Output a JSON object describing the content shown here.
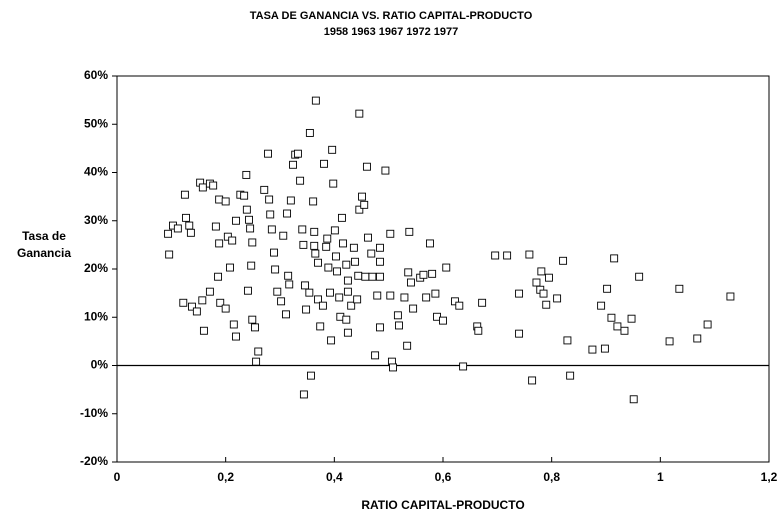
{
  "chart_data": {
    "type": "scatter",
    "title": "TASA DE GANANCIA VS. RATIO CAPITAL-PRODUCTO",
    "subtitle": "1958 1963 1967 1972 1977",
    "xlabel": "RATIO CAPITAL-PRODUCTO",
    "ylabel": [
      "Tasa de",
      "Ganancia"
    ],
    "color": "#000000",
    "marker": "square",
    "zero_line": true,
    "xlim": [
      0,
      1.2
    ],
    "ylim": [
      -20,
      60
    ],
    "xticks": [
      0,
      {
        "value": 0.2,
        "label": "0,2"
      },
      {
        "value": 0.4,
        "label": "0,4"
      },
      {
        "value": 0.6,
        "label": "0,6"
      },
      {
        "value": 0.8,
        "label": "0,8"
      },
      1,
      {
        "value": 1.2,
        "label": "1,2"
      }
    ],
    "yticks": [
      {
        "value": -20,
        "label": "-20%"
      },
      {
        "value": -10,
        "label": "-10%"
      },
      {
        "value": 0,
        "label": "0%"
      },
      {
        "value": 10,
        "label": "10%"
      },
      {
        "value": 20,
        "label": "20%"
      },
      {
        "value": 30,
        "label": "30%"
      },
      {
        "value": 40,
        "label": "40%"
      },
      {
        "value": 50,
        "label": "50%"
      },
      {
        "value": 60,
        "label": "60%"
      }
    ],
    "x": [
      0.094,
      0.096,
      0.103,
      0.112,
      0.125,
      0.122,
      0.127,
      0.133,
      0.136,
      0.138,
      0.153,
      0.158,
      0.171,
      0.177,
      0.188,
      0.182,
      0.188,
      0.186,
      0.19,
      0.2,
      0.204,
      0.212,
      0.208,
      0.215,
      0.219,
      0.219,
      0.227,
      0.234,
      0.238,
      0.239,
      0.243,
      0.245,
      0.249,
      0.247,
      0.241,
      0.249,
      0.254,
      0.26,
      0.256,
      0.271,
      0.278,
      0.28,
      0.282,
      0.285,
      0.289,
      0.291,
      0.295,
      0.302,
      0.306,
      0.313,
      0.315,
      0.317,
      0.32,
      0.324,
      0.328,
      0.333,
      0.337,
      0.341,
      0.343,
      0.346,
      0.348,
      0.354,
      0.344,
      0.357,
      0.355,
      0.366,
      0.361,
      0.363,
      0.365,
      0.37,
      0.37,
      0.374,
      0.381,
      0.385,
      0.387,
      0.389,
      0.392,
      0.394,
      0.396,
      0.398,
      0.401,
      0.403,
      0.405,
      0.409,
      0.411,
      0.414,
      0.416,
      0.422,
      0.425,
      0.431,
      0.425,
      0.436,
      0.438,
      0.444,
      0.446,
      0.446,
      0.451,
      0.455,
      0.46,
      0.462,
      0.468,
      0.47,
      0.475,
      0.479,
      0.484,
      0.494,
      0.503,
      0.503,
      0.506,
      0.508,
      0.519,
      0.529,
      0.534,
      0.536,
      0.538,
      0.541,
      0.545,
      0.558,
      0.564,
      0.569,
      0.576,
      0.58,
      0.586,
      0.589,
      0.6,
      0.606,
      0.622,
      0.63,
      0.637,
      0.663,
      0.665,
      0.672,
      0.696,
      0.718,
      0.74,
      0.74,
      0.759,
      0.764,
      0.772,
      0.779,
      0.781,
      0.785,
      0.79,
      0.795,
      0.81,
      0.821,
      0.829,
      0.834,
      0.875,
      0.891,
      0.898,
      0.902,
      0.91,
      0.915,
      0.921,
      0.934,
      0.947,
      0.951,
      0.961,
      1.017,
      1.035,
      1.068,
      1.087,
      1.129,
      0.16,
      0.157,
      0.147,
      0.171,
      0.2,
      0.311,
      0.363,
      0.484,
      0.457,
      0.425,
      0.379,
      0.484,
      0.517,
      0.422,
      0.442,
      0.484
    ],
    "values": [
      27.3,
      23,
      29,
      28.4,
      35.4,
      13,
      30.6,
      29,
      27.5,
      12.2,
      37.9,
      36.9,
      37.7,
      37.3,
      34.4,
      28.8,
      25.3,
      18.4,
      13,
      34,
      26.7,
      25.9,
      20.3,
      8.5,
      6,
      30,
      35.4,
      35.2,
      39.5,
      32.3,
      30.2,
      28.4,
      25.5,
      20.7,
      15.5,
      9.5,
      7.9,
      2.9,
      0.8,
      36.4,
      43.9,
      34.4,
      31.3,
      28.2,
      23.4,
      19.9,
      15.3,
      13.3,
      26.9,
      31.5,
      18.6,
      16.8,
      34.2,
      41.6,
      43.7,
      43.9,
      38.3,
      28.2,
      25,
      16.6,
      11.6,
      15.1,
      -6,
      -2.1,
      48.2,
      54.9,
      34,
      27.7,
      23.2,
      21.3,
      13.7,
      8.1,
      41.8,
      24.6,
      26.3,
      20.3,
      15.1,
      5.2,
      44.7,
      37.7,
      28,
      22.6,
      19.5,
      14.1,
      10.1,
      30.6,
      25.3,
      20.9,
      17.6,
      12.4,
      6.8,
      24.4,
      21.5,
      18.6,
      32.3,
      52.2,
      35,
      33.3,
      41.2,
      26.5,
      23.2,
      18.4,
      2.1,
      14.5,
      7.9,
      40.4,
      27.3,
      14.5,
      0.8,
      -0.4,
      8.3,
      14.1,
      4.1,
      19.3,
      27.7,
      17.2,
      11.8,
      18.2,
      18.8,
      14.1,
      25.3,
      19,
      14.9,
      10.1,
      9.3,
      20.3,
      13.3,
      12.4,
      -0.2,
      8.1,
      7.2,
      13,
      22.8,
      22.8,
      6.6,
      14.9,
      23,
      -3.1,
      17.2,
      15.7,
      19.5,
      14.9,
      12.6,
      18.2,
      13.9,
      21.7,
      5.2,
      -2.1,
      3.3,
      12.4,
      3.5,
      15.9,
      9.9,
      22.2,
      8.1,
      7.2,
      9.7,
      -7,
      18.4,
      5,
      15.9,
      5.6,
      8.5,
      14.3,
      7.2,
      13.5,
      11.2,
      15.3,
      11.8,
      10.6,
      24.8,
      18.4,
      18.4,
      15.3,
      12.4,
      21.5,
      10.4,
      9.5,
      13.7,
      24.4
    ]
  }
}
